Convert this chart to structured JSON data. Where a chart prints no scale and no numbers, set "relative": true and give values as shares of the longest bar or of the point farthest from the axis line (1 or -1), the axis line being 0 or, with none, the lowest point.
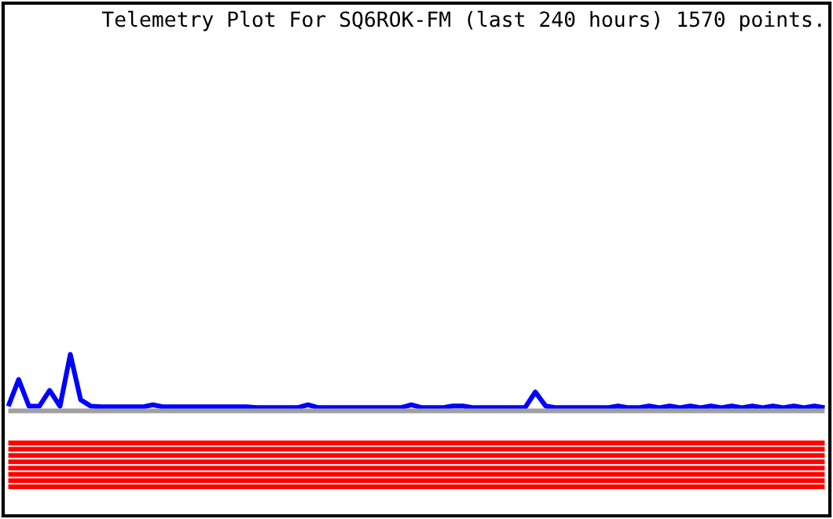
{
  "chart_data": {
    "type": "line",
    "title": "Telemetry Plot For SQ6ROK-FM (last 240 hours) 1570 points.",
    "relative": true,
    "categories": [
      null,
      null,
      null,
      null,
      null,
      null,
      null,
      null,
      null,
      null,
      null,
      null,
      null,
      null,
      null,
      null,
      null,
      null,
      null,
      null,
      null,
      null,
      null,
      null,
      null,
      null,
      null,
      null,
      null,
      null,
      null,
      null,
      null,
      null,
      null,
      null,
      null,
      null,
      null,
      null,
      null,
      null,
      null,
      null,
      null,
      null,
      null,
      null,
      null,
      null,
      null,
      null,
      null,
      null,
      null,
      null,
      null,
      null,
      null,
      null,
      null,
      null,
      null,
      null,
      null,
      null,
      null,
      null,
      null,
      null,
      null,
      null,
      null,
      null,
      null,
      null,
      null,
      null,
      null,
      null
    ],
    "series": [
      {
        "color": "#0000ff",
        "values": [
          0.679,
          0.844,
          0.679,
          0.679,
          0.777,
          0.679,
          1.0,
          0.719,
          0.679,
          0.675,
          0.675,
          0.675,
          0.675,
          0.675,
          0.688,
          0.675,
          0.675,
          0.675,
          0.675,
          0.675,
          0.675,
          0.675,
          0.675,
          0.675,
          0.67,
          0.67,
          0.67,
          0.67,
          0.67,
          0.688,
          0.67,
          0.67,
          0.67,
          0.67,
          0.67,
          0.67,
          0.67,
          0.67,
          0.67,
          0.688,
          0.67,
          0.67,
          0.67,
          0.68,
          0.68,
          0.67,
          0.67,
          0.67,
          0.67,
          0.67,
          0.67,
          0.767,
          0.68,
          0.67,
          0.67,
          0.67,
          0.67,
          0.67,
          0.67,
          0.68,
          0.67,
          0.67,
          0.68,
          0.67,
          0.68,
          0.67,
          0.68,
          0.67,
          0.68,
          0.67,
          0.68,
          0.67,
          0.68,
          0.67,
          0.68,
          0.67,
          0.68,
          0.67,
          0.68,
          0.67
        ]
      },
      {
        "color": "#a0a0a0",
        "values": [
          0.65,
          0.65,
          0.65,
          0.65,
          0.65,
          0.65,
          0.65,
          0.65,
          0.65,
          0.65,
          0.65,
          0.65,
          0.65,
          0.65,
          0.65,
          0.65,
          0.65,
          0.65,
          0.65,
          0.65,
          0.65,
          0.65,
          0.65,
          0.65,
          0.65,
          0.65,
          0.65,
          0.65,
          0.65,
          0.65,
          0.65,
          0.65,
          0.65,
          0.65,
          0.65,
          0.65,
          0.65,
          0.65,
          0.65,
          0.65,
          0.65,
          0.65,
          0.65,
          0.65,
          0.65,
          0.65,
          0.65,
          0.65,
          0.65,
          0.65,
          0.65,
          0.65,
          0.65,
          0.65,
          0.65,
          0.65,
          0.65,
          0.65,
          0.65,
          0.65,
          0.65,
          0.65,
          0.65,
          0.65,
          0.65,
          0.65,
          0.65,
          0.65,
          0.65,
          0.65,
          0.65,
          0.65,
          0.65,
          0.65,
          0.65,
          0.65,
          0.65,
          0.65,
          0.65,
          0.65
        ]
      },
      {
        "color": "#ff0000",
        "values": [
          0.451,
          0.451,
          0.451,
          0.451,
          0.451,
          0.451,
          0.451,
          0.451,
          0.451,
          0.451,
          0.451,
          0.451,
          0.451,
          0.451,
          0.451,
          0.451,
          0.451,
          0.451,
          0.451,
          0.451,
          0.451,
          0.451,
          0.451,
          0.451,
          0.451,
          0.451,
          0.451,
          0.451,
          0.451,
          0.451,
          0.451,
          0.451,
          0.451,
          0.451,
          0.451,
          0.451,
          0.451,
          0.451,
          0.451,
          0.451,
          0.451,
          0.451,
          0.451,
          0.451,
          0.451,
          0.451,
          0.451,
          0.451,
          0.451,
          0.451,
          0.451,
          0.451,
          0.451,
          0.451,
          0.451,
          0.451,
          0.451,
          0.451,
          0.451,
          0.451,
          0.451,
          0.451,
          0.451,
          0.451,
          0.451,
          0.451,
          0.451,
          0.451,
          0.451,
          0.451,
          0.451,
          0.451,
          0.451,
          0.451,
          0.451,
          0.451,
          0.451,
          0.451,
          0.451,
          0.451
        ]
      },
      {
        "color": "#ff0000",
        "values": [
          0.413,
          0.413,
          0.413,
          0.413,
          0.413,
          0.413,
          0.413,
          0.413,
          0.413,
          0.413,
          0.413,
          0.413,
          0.413,
          0.413,
          0.413,
          0.413,
          0.413,
          0.413,
          0.413,
          0.413,
          0.413,
          0.413,
          0.413,
          0.413,
          0.413,
          0.413,
          0.413,
          0.413,
          0.413,
          0.413,
          0.413,
          0.413,
          0.413,
          0.413,
          0.413,
          0.413,
          0.413,
          0.413,
          0.413,
          0.413,
          0.413,
          0.413,
          0.413,
          0.413,
          0.413,
          0.413,
          0.413,
          0.413,
          0.413,
          0.413,
          0.413,
          0.413,
          0.413,
          0.413,
          0.413,
          0.413,
          0.413,
          0.413,
          0.413,
          0.413,
          0.413,
          0.413,
          0.413,
          0.413,
          0.413,
          0.413,
          0.413,
          0.413,
          0.413,
          0.413,
          0.413,
          0.413,
          0.413,
          0.413,
          0.413,
          0.413,
          0.413,
          0.413,
          0.413,
          0.413
        ]
      },
      {
        "color": "#ff0000",
        "values": [
          0.374,
          0.374,
          0.374,
          0.374,
          0.374,
          0.374,
          0.374,
          0.374,
          0.374,
          0.374,
          0.374,
          0.374,
          0.374,
          0.374,
          0.374,
          0.374,
          0.374,
          0.374,
          0.374,
          0.374,
          0.374,
          0.374,
          0.374,
          0.374,
          0.374,
          0.374,
          0.374,
          0.374,
          0.374,
          0.374,
          0.374,
          0.374,
          0.374,
          0.374,
          0.374,
          0.374,
          0.374,
          0.374,
          0.374,
          0.374,
          0.374,
          0.374,
          0.374,
          0.374,
          0.374,
          0.374,
          0.374,
          0.374,
          0.374,
          0.374,
          0.374,
          0.374,
          0.374,
          0.374,
          0.374,
          0.374,
          0.374,
          0.374,
          0.374,
          0.374,
          0.374,
          0.374,
          0.374,
          0.374,
          0.374,
          0.374,
          0.374,
          0.374,
          0.374,
          0.374,
          0.374,
          0.374,
          0.374,
          0.374,
          0.374,
          0.374,
          0.374,
          0.374,
          0.374,
          0.374
        ]
      },
      {
        "color": "#ff0000",
        "values": [
          0.335,
          0.335,
          0.335,
          0.335,
          0.335,
          0.335,
          0.335,
          0.335,
          0.335,
          0.335,
          0.335,
          0.335,
          0.335,
          0.335,
          0.335,
          0.335,
          0.335,
          0.335,
          0.335,
          0.335,
          0.335,
          0.335,
          0.335,
          0.335,
          0.335,
          0.335,
          0.335,
          0.335,
          0.335,
          0.335,
          0.335,
          0.335,
          0.335,
          0.335,
          0.335,
          0.335,
          0.335,
          0.335,
          0.335,
          0.335,
          0.335,
          0.335,
          0.335,
          0.335,
          0.335,
          0.335,
          0.335,
          0.335,
          0.335,
          0.335,
          0.335,
          0.335,
          0.335,
          0.335,
          0.335,
          0.335,
          0.335,
          0.335,
          0.335,
          0.335,
          0.335,
          0.335,
          0.335,
          0.335,
          0.335,
          0.335,
          0.335,
          0.335,
          0.335,
          0.335,
          0.335,
          0.335,
          0.335,
          0.335,
          0.335,
          0.335,
          0.335,
          0.335,
          0.335,
          0.335
        ]
      },
      {
        "color": "#ff0000",
        "values": [
          0.296,
          0.296,
          0.296,
          0.296,
          0.296,
          0.296,
          0.296,
          0.296,
          0.296,
          0.296,
          0.296,
          0.296,
          0.296,
          0.296,
          0.296,
          0.296,
          0.296,
          0.296,
          0.296,
          0.296,
          0.296,
          0.296,
          0.296,
          0.296,
          0.296,
          0.296,
          0.296,
          0.296,
          0.296,
          0.296,
          0.296,
          0.296,
          0.296,
          0.296,
          0.296,
          0.296,
          0.296,
          0.296,
          0.296,
          0.296,
          0.296,
          0.296,
          0.296,
          0.296,
          0.296,
          0.296,
          0.296,
          0.296,
          0.296,
          0.296,
          0.296,
          0.296,
          0.296,
          0.296,
          0.296,
          0.296,
          0.296,
          0.296,
          0.296,
          0.296,
          0.296,
          0.296,
          0.296,
          0.296,
          0.296,
          0.296,
          0.296,
          0.296,
          0.296,
          0.296,
          0.296,
          0.296,
          0.296,
          0.296,
          0.296,
          0.296,
          0.296,
          0.296,
          0.296,
          0.296
        ]
      },
      {
        "color": "#ff0000",
        "values": [
          0.257,
          0.257,
          0.257,
          0.257,
          0.257,
          0.257,
          0.257,
          0.257,
          0.257,
          0.257,
          0.257,
          0.257,
          0.257,
          0.257,
          0.257,
          0.257,
          0.257,
          0.257,
          0.257,
          0.257,
          0.257,
          0.257,
          0.257,
          0.257,
          0.257,
          0.257,
          0.257,
          0.257,
          0.257,
          0.257,
          0.257,
          0.257,
          0.257,
          0.257,
          0.257,
          0.257,
          0.257,
          0.257,
          0.257,
          0.257,
          0.257,
          0.257,
          0.257,
          0.257,
          0.257,
          0.257,
          0.257,
          0.257,
          0.257,
          0.257,
          0.257,
          0.257,
          0.257,
          0.257,
          0.257,
          0.257,
          0.257,
          0.257,
          0.257,
          0.257,
          0.257,
          0.257,
          0.257,
          0.257,
          0.257,
          0.257,
          0.257,
          0.257,
          0.257,
          0.257,
          0.257,
          0.257,
          0.257,
          0.257,
          0.257,
          0.257,
          0.257,
          0.257,
          0.257,
          0.257
        ]
      },
      {
        "color": "#ff0000",
        "values": [
          0.218,
          0.218,
          0.218,
          0.218,
          0.218,
          0.218,
          0.218,
          0.218,
          0.218,
          0.218,
          0.218,
          0.218,
          0.218,
          0.218,
          0.218,
          0.218,
          0.218,
          0.218,
          0.218,
          0.218,
          0.218,
          0.218,
          0.218,
          0.218,
          0.218,
          0.218,
          0.218,
          0.218,
          0.218,
          0.218,
          0.218,
          0.218,
          0.218,
          0.218,
          0.218,
          0.218,
          0.218,
          0.218,
          0.218,
          0.218,
          0.218,
          0.218,
          0.218,
          0.218,
          0.218,
          0.218,
          0.218,
          0.218,
          0.218,
          0.218,
          0.218,
          0.218,
          0.218,
          0.218,
          0.218,
          0.218,
          0.218,
          0.218,
          0.218,
          0.218,
          0.218,
          0.218,
          0.218,
          0.218,
          0.218,
          0.218,
          0.218,
          0.218,
          0.218,
          0.218,
          0.218,
          0.218,
          0.218,
          0.218,
          0.218,
          0.218,
          0.218,
          0.218,
          0.218,
          0.218
        ]
      },
      {
        "color": "#ff0000",
        "values": [
          0.18,
          0.18,
          0.18,
          0.18,
          0.18,
          0.18,
          0.18,
          0.18,
          0.18,
          0.18,
          0.18,
          0.18,
          0.18,
          0.18,
          0.18,
          0.18,
          0.18,
          0.18,
          0.18,
          0.18,
          0.18,
          0.18,
          0.18,
          0.18,
          0.18,
          0.18,
          0.18,
          0.18,
          0.18,
          0.18,
          0.18,
          0.18,
          0.18,
          0.18,
          0.18,
          0.18,
          0.18,
          0.18,
          0.18,
          0.18,
          0.18,
          0.18,
          0.18,
          0.18,
          0.18,
          0.18,
          0.18,
          0.18,
          0.18,
          0.18,
          0.18,
          0.18,
          0.18,
          0.18,
          0.18,
          0.18,
          0.18,
          0.18,
          0.18,
          0.18,
          0.18,
          0.18,
          0.18,
          0.18,
          0.18,
          0.18,
          0.18,
          0.18,
          0.18,
          0.18,
          0.18,
          0.18,
          0.18,
          0.18,
          0.18,
          0.18,
          0.18,
          0.18,
          0.18,
          0.18
        ]
      }
    ]
  }
}
